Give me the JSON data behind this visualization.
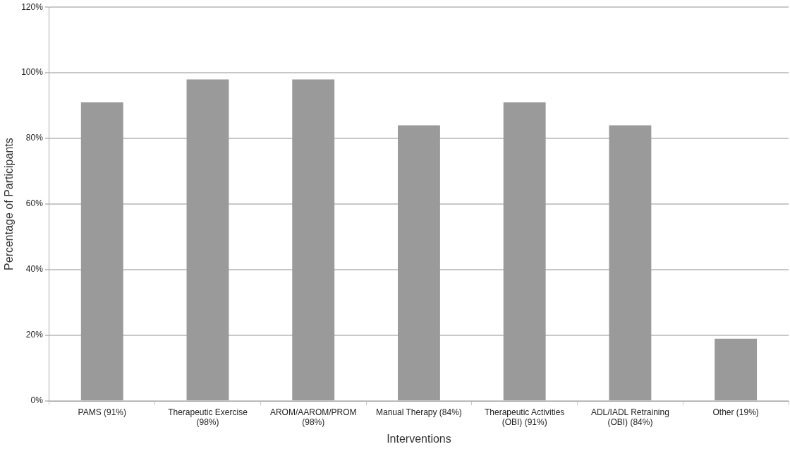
{
  "chart_data": {
    "type": "bar",
    "xlabel": "Interventions",
    "ylabel": "Percentage of Participants",
    "categories": [
      "PAMS (91%)",
      "Therapeutic Exercise (98%)",
      "AROM/AAROM/PROM (98%)",
      "Manual Therapy (84%)",
      "Therapeutic Activities (OBI) (91%)",
      "ADL/IADL Retraining (OBI) (84%)",
      "Other (19%)"
    ],
    "values": [
      91,
      98,
      98,
      84,
      91,
      84,
      19
    ],
    "color": "#9a9a9a",
    "ylim": [
      0,
      120
    ],
    "yticks": [
      {
        "value": 0,
        "label": "0%"
      },
      {
        "value": 20,
        "label": "20%"
      },
      {
        "value": 40,
        "label": "40%"
      },
      {
        "value": 60,
        "label": "60%"
      },
      {
        "value": 80,
        "label": "80%"
      },
      {
        "value": 100,
        "label": "100%"
      },
      {
        "value": 120,
        "label": "120%"
      }
    ],
    "grid": "y",
    "legend": false
  }
}
